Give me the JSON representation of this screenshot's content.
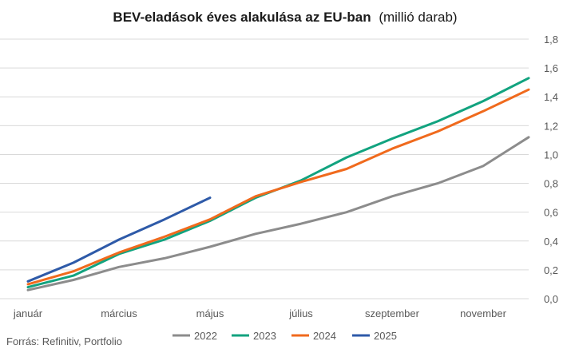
{
  "chart_data": {
    "type": "line",
    "title": "BEV-eladások éves alakulása az EU-ban",
    "subtitle": "(millió darab)",
    "xlabel": "",
    "ylabel": "",
    "x_tick_labels": [
      "január",
      "március",
      "május",
      "július",
      "szeptember",
      "november"
    ],
    "x_tick_positions": [
      1,
      3,
      5,
      7,
      9,
      11
    ],
    "xlim": [
      1,
      12
    ],
    "y_tick_labels": [
      "0,0",
      "0,2",
      "0,4",
      "0,6",
      "0,8",
      "1,0",
      "1,2",
      "1,4",
      "1,6",
      "1,8"
    ],
    "ylim": [
      0,
      1.8
    ],
    "grid": "horizontal",
    "y_axis_position": "right",
    "legend_position": "bottom",
    "source": "Forrás: Refinitiv, Portfolio",
    "series": [
      {
        "name": "2022",
        "color": "#8c8c8c",
        "x": [
          1,
          2,
          3,
          4,
          5,
          6,
          7,
          8,
          9,
          10,
          11,
          12
        ],
        "values": [
          0.06,
          0.13,
          0.22,
          0.28,
          0.36,
          0.45,
          0.52,
          0.6,
          0.71,
          0.8,
          0.92,
          1.12
        ]
      },
      {
        "name": "2023",
        "color": "#12a37f",
        "x": [
          1,
          2,
          3,
          4,
          5,
          6,
          7,
          8,
          9,
          10,
          11,
          12
        ],
        "values": [
          0.08,
          0.16,
          0.31,
          0.41,
          0.54,
          0.7,
          0.82,
          0.98,
          1.11,
          1.23,
          1.37,
          1.53
        ]
      },
      {
        "name": "2024",
        "color": "#f06a1d",
        "x": [
          1,
          2,
          3,
          4,
          5,
          6,
          7,
          8,
          9,
          10,
          11,
          12
        ],
        "values": [
          0.1,
          0.19,
          0.32,
          0.43,
          0.55,
          0.71,
          0.81,
          0.9,
          1.04,
          1.16,
          1.3,
          1.45
        ]
      },
      {
        "name": "2025",
        "color": "#2e5aa8",
        "x": [
          1,
          2,
          3,
          4,
          5
        ],
        "values": [
          0.12,
          0.25,
          0.41,
          0.55,
          0.7
        ]
      }
    ]
  }
}
